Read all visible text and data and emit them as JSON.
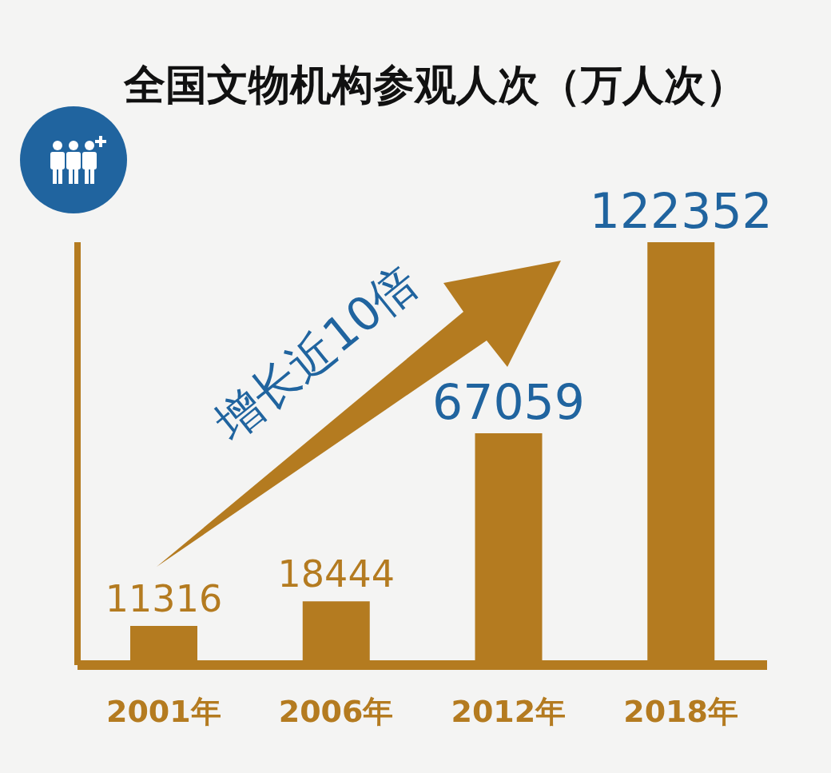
{
  "chart_data": {
    "type": "bar",
    "title": "全国文物机构参观人次（万人次）",
    "categories": [
      "2001年",
      "2006年",
      "2012年",
      "2018年"
    ],
    "values": [
      11316,
      18444,
      67059,
      122352
    ],
    "color": "#b47b20",
    "data_labels": true,
    "tick_labels": "x",
    "annotations": [
      "增长近10倍"
    ]
  }
}
